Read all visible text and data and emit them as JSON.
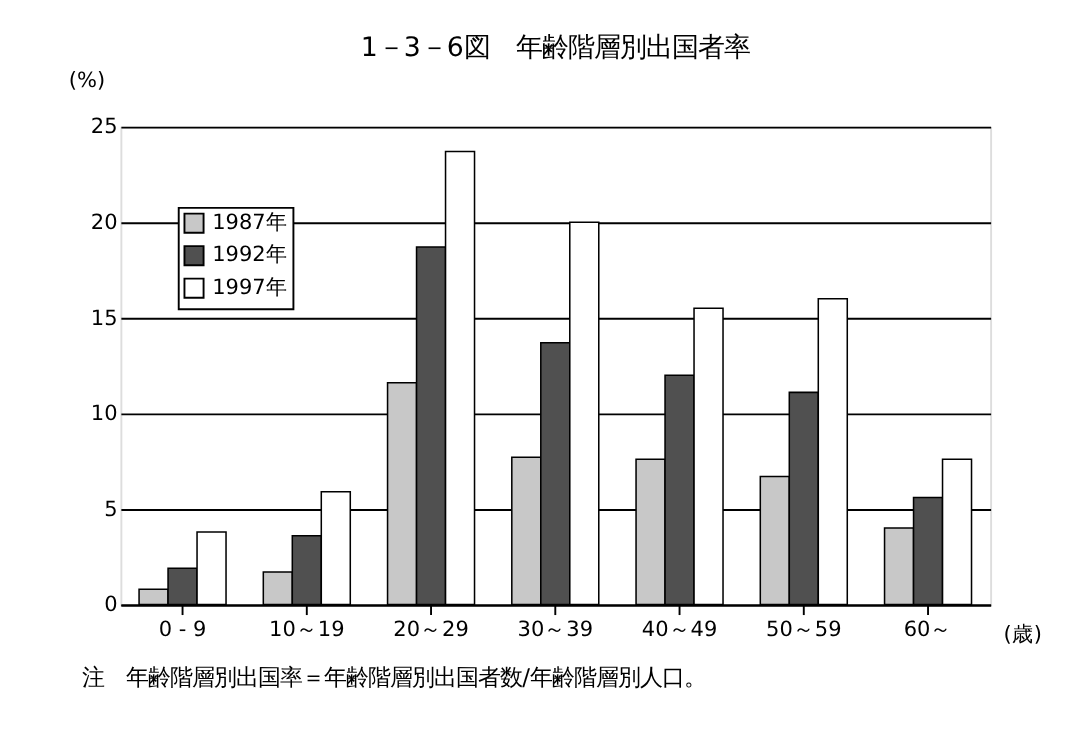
{
  "chart_data": {
    "type": "bar",
    "title": "1－3－6図　年齢階層別出国者率",
    "ylabel": "(%)",
    "xlabel": "(歳)",
    "categories": [
      "0 - 9",
      "10～19",
      "20～29",
      "30～39",
      "40～49",
      "50～59",
      "60～"
    ],
    "series": [
      {
        "name": "1987年",
        "color": "#c8c8c8",
        "values": [
          0.8,
          1.7,
          11.6,
          7.7,
          7.6,
          6.7,
          4.0
        ]
      },
      {
        "name": "1992年",
        "color": "#505050",
        "values": [
          1.9,
          3.6,
          18.7,
          13.7,
          12.0,
          11.1,
          5.6
        ]
      },
      {
        "name": "1997年",
        "color": "#ffffff",
        "values": [
          3.8,
          5.9,
          23.7,
          20.0,
          15.5,
          16.0,
          7.6
        ]
      }
    ],
    "ylim": [
      0,
      25
    ],
    "yticks": [
      0,
      5,
      10,
      15,
      20,
      25
    ],
    "grid": "y",
    "legend": "top left",
    "annotations": [
      "注　年齢階層別出国率＝年齢階層別出国者数/年齢階層別人口。"
    ]
  }
}
